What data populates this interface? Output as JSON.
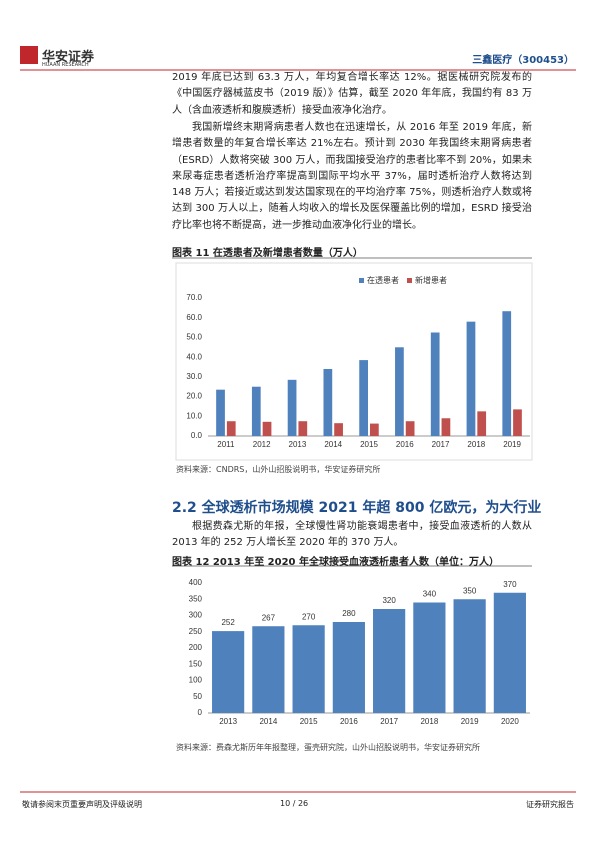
{
  "header": {
    "logo_cn": "华安证券",
    "logo_en": "HUAAN RESEARCH",
    "company": "三鑫医疗（300453）"
  },
  "paragraphs": [
    "2019 年底已达到 63.3 万人，年均复合增长率达 12%。据医械研究院发布的《中国医疗器械蓝皮书（2019 版）》估算，截至 2020 年年底，我国约有 83 万人（含血液透析和腹膜透析）接受血液净化治疗。",
    "我国新增终末期肾病患者人数也在迅速增长，从 2016 年至 2019 年底，新增患者数量的年复合增长率达 21%左右。预计到 2030 年我国终末期肾病患者（ESRD）人数将突破 300 万人，而我国接受治疗的患者比率不到 20%，如果未来尿毒症患者透析治疗率提高到国际平均水平 37%，届时透析治疗人数将达到 148 万人；若接近或达到发达国家现在的平均治疗率 75%，则透析治疗人数或将达到 300 万人以上，随着人均收入的增长及医保覆盖比例的增加，ESRD 接受治疗比率也将不断提高，进一步推动血液净化行业的增长。"
  ],
  "section_heading": "2.2 全球透析市场规模 2021 年超 800 亿欧元，为大行业",
  "section_paragraph": "根据费森尤斯的年报，全球慢性肾功能衰竭患者中，接受血液透析的人数从 2013 年的 252 万人增长至 2020 年的 370 万人。",
  "chart_data": [
    {
      "type": "bar",
      "title": "图表 11 在透患者及新增患者数量（万人）",
      "categories": [
        "2011",
        "2012",
        "2013",
        "2014",
        "2015",
        "2016",
        "2017",
        "2018",
        "2019"
      ],
      "series": [
        {
          "name": "在透患者",
          "color": "#4f81bd",
          "values": [
            23.5,
            25,
            28.5,
            34,
            38.5,
            45,
            52.5,
            58,
            63.3
          ]
        },
        {
          "name": "新增患者",
          "color": "#c0504d",
          "values": [
            7.5,
            7.2,
            7.5,
            6.5,
            6.3,
            7.5,
            9,
            12.5,
            13.5
          ]
        }
      ],
      "ylim": [
        0,
        70
      ],
      "yticks": [
        {
          "value": 0,
          "label": "0.0"
        },
        {
          "value": 10,
          "label": "10.0"
        },
        {
          "value": 20,
          "label": "20.0"
        },
        {
          "value": 30,
          "label": "30.0"
        },
        {
          "value": 40,
          "label": "40.0"
        },
        {
          "value": 50,
          "label": "50.0"
        },
        {
          "value": 60,
          "label": "60.0"
        },
        {
          "value": 70,
          "label": "70.0"
        }
      ],
      "grid": false,
      "legend": "top",
      "source": "资料来源：CNDRS，山外山招股说明书，华安证券研究所"
    },
    {
      "type": "bar",
      "title": "图表 12 2013 年至 2020 年全球接受血液透析患者人数（单位：万人）",
      "categories": [
        "2013",
        "2014",
        "2015",
        "2016",
        "2017",
        "2018",
        "2019",
        "2020"
      ],
      "values": [
        252,
        267,
        270,
        280,
        320,
        340,
        350,
        370
      ],
      "color": "#4f81bd",
      "ylim": [
        0,
        400
      ],
      "yticks": [
        0,
        50,
        100,
        150,
        200,
        250,
        300,
        350,
        400
      ],
      "grid": false,
      "data_labels": true,
      "source": "资料来源：费森尤斯历年年报整理，蛋壳研究院，山外山招股说明书，华安证券研究所"
    }
  ],
  "footer": {
    "left": "敬请参阅末页重要声明及评级说明",
    "page": "10 / 26",
    "right": "证券研究报告"
  }
}
